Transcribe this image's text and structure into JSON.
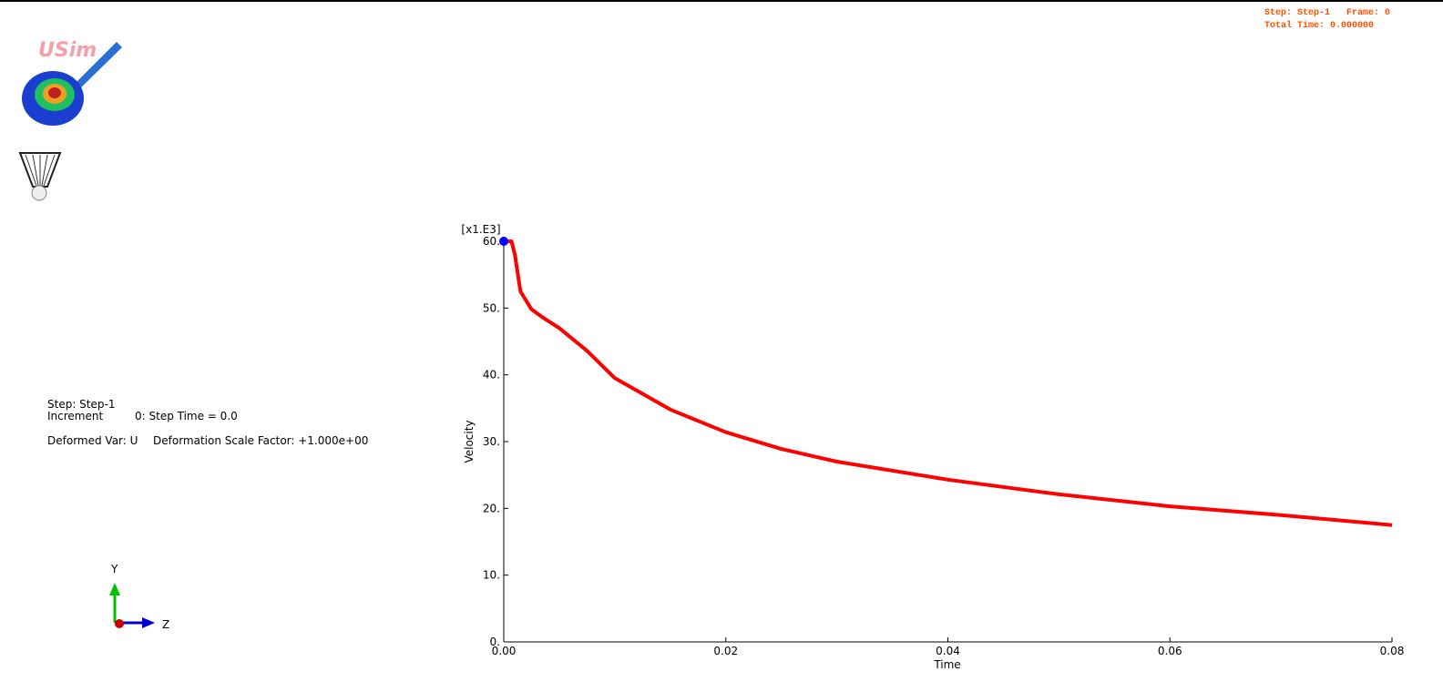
{
  "status": {
    "step": "Step: Step-1   Frame: 0",
    "time": "Total Time: 0.000000"
  },
  "logo": "USim",
  "info": {
    "step": "Step: Step-1",
    "increment": "Increment",
    "step_time": "0: Step Time = 0.0",
    "deformed_var": "Deformed Var: U",
    "scale_factor": "Deformation Scale Factor: +1.000e+00"
  },
  "triad": {
    "y": "Y",
    "z": "Z"
  },
  "chart_data": {
    "type": "line",
    "x_label": "Time",
    "y_label": "Velocity",
    "y_multiplier": "[x1.E3]",
    "x": [
      0,
      0.0005,
      0.0007,
      0.001,
      0.0015,
      0.0025,
      0.0035,
      0.005,
      0.0075,
      0.01,
      0.015,
      0.02,
      0.025,
      0.03,
      0.04,
      0.05,
      0.06,
      0.07,
      0.08
    ],
    "values": [
      60,
      60,
      60,
      58,
      52.5,
      49.8,
      48.6,
      47,
      43.6,
      39.5,
      34.8,
      31.4,
      28.9,
      27,
      24.3,
      22.1,
      20.3,
      19,
      17.5
    ],
    "color": "#ff0000",
    "marker_color": "#0000ff",
    "xlim": [
      0,
      0.08
    ],
    "ylim": [
      0,
      60
    ],
    "xticks": [
      {
        "value": 0,
        "label": "0.00"
      },
      {
        "value": 0.02,
        "label": "0.02"
      },
      {
        "value": 0.04,
        "label": "0.04"
      },
      {
        "value": 0.06,
        "label": "0.06"
      },
      {
        "value": 0.08,
        "label": "0.08"
      }
    ],
    "yticks": [
      {
        "value": 0,
        "label": "0."
      },
      {
        "value": 10,
        "label": "10."
      },
      {
        "value": 20,
        "label": "20."
      },
      {
        "value": 30,
        "label": "30."
      },
      {
        "value": 40,
        "label": "40."
      },
      {
        "value": 50,
        "label": "50."
      },
      {
        "value": 60,
        "label": "60."
      }
    ]
  }
}
